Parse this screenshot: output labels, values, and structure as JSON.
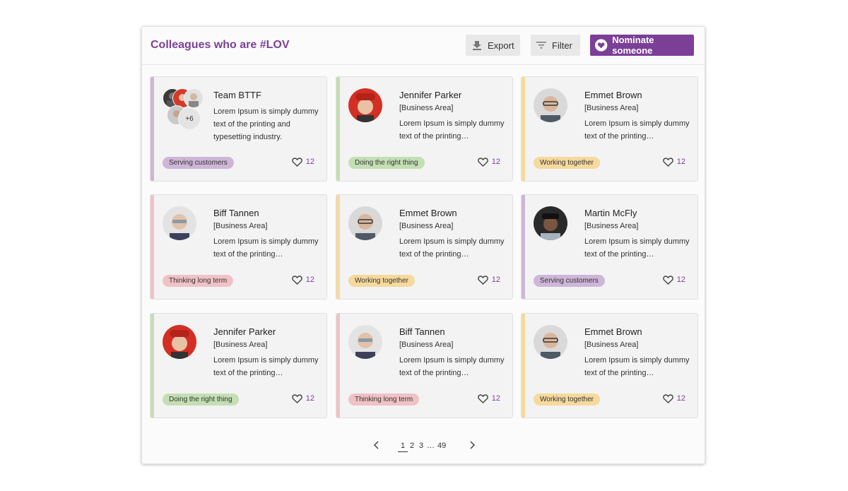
{
  "header": {
    "title": "Colleagues who are #LOV",
    "export_label": "Export",
    "filter_label": "Filter",
    "nominate_label": "Nominate someone"
  },
  "colors": {
    "brand": "#7b3f98",
    "serving": "#cdb6d8",
    "right_thing": "#c4dfb3",
    "together": "#f6d99c",
    "long_term": "#f0c2c6"
  },
  "cards": [
    {
      "name": "Team BTTF",
      "area": "",
      "desc": "Lorem Ipsum is simply dummy text of the printing and typesetting industry.",
      "tag": "Serving customers",
      "likes": "12",
      "more": "+6"
    },
    {
      "name": "Jennifer Parker",
      "area": "[Business Area]",
      "desc": "Lorem Ipsum is simply dummy text of the printing…",
      "tag": "Doing the right thing",
      "likes": "12"
    },
    {
      "name": "Emmet Brown",
      "area": "[Business Area]",
      "desc": "Lorem Ipsum is simply dummy text of the printing…",
      "tag": "Working together",
      "likes": "12"
    },
    {
      "name": "Biff Tannen",
      "area": "[Business Area]",
      "desc": "Lorem Ipsum is simply dummy text of the printing…",
      "tag": "Thinking long term",
      "likes": "12"
    },
    {
      "name": "Emmet Brown",
      "area": "[Business Area]",
      "desc": "Lorem Ipsum is simply dummy text of the printing…",
      "tag": "Working together",
      "likes": "12"
    },
    {
      "name": "Martin McFly",
      "area": "[Business Area]",
      "desc": "Lorem Ipsum is simply dummy text of the printing…",
      "tag": "Serving customers",
      "likes": "12"
    },
    {
      "name": "Jennifer Parker",
      "area": "[Business Area]",
      "desc": "Lorem Ipsum is simply dummy text of the printing…",
      "tag": "Doing the right thing",
      "likes": "12"
    },
    {
      "name": "Biff Tannen",
      "area": "[Business Area]",
      "desc": "Lorem Ipsum is simply dummy text of the printing…",
      "tag": "Thinking long term",
      "likes": "12"
    },
    {
      "name": "Emmet Brown",
      "area": "[Business Area]",
      "desc": "Lorem Ipsum is simply dummy text of the printing…",
      "tag": "Working together",
      "likes": "12"
    }
  ],
  "pagination": {
    "pages": [
      "1",
      "2",
      "3",
      "…",
      "49"
    ],
    "current": "1"
  }
}
